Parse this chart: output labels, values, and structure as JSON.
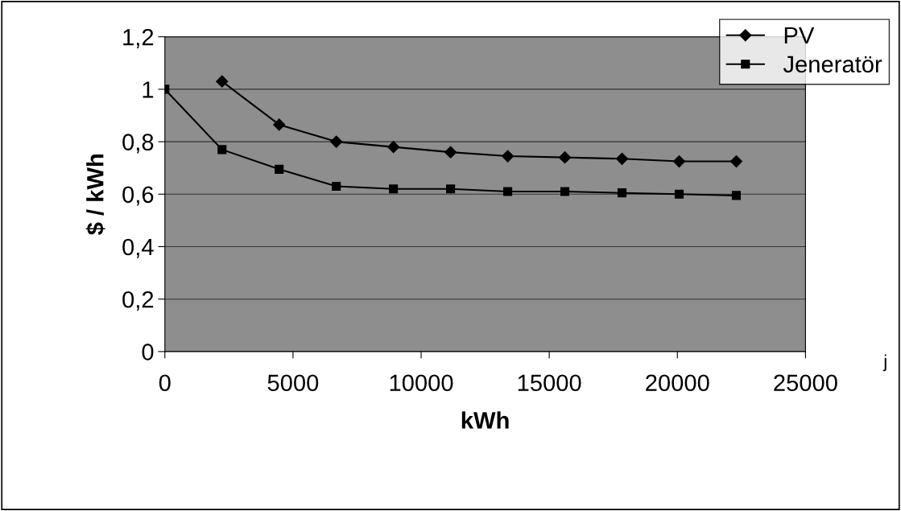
{
  "chart_data": {
    "type": "line",
    "xlabel": "kWh",
    "ylabel": "$ / kWh",
    "series": [
      {
        "name": "PV",
        "color": "#000000",
        "marker": "diamond",
        "x": [
          2230,
          4460,
          6690,
          8920,
          11150,
          13380,
          15610,
          17840,
          20070,
          22300
        ],
        "values": [
          1.03,
          0.865,
          0.8,
          0.78,
          0.76,
          0.745,
          0.74,
          0.735,
          0.725,
          0.725
        ]
      },
      {
        "name": "Jeneratör",
        "color": "#000000",
        "marker": "square",
        "x": [
          0,
          2230,
          4460,
          6690,
          8920,
          11150,
          13380,
          15610,
          17840,
          20070,
          22300
        ],
        "values": [
          1.0,
          0.77,
          0.695,
          0.63,
          0.62,
          0.62,
          0.61,
          0.61,
          0.605,
          0.6,
          0.595
        ]
      }
    ],
    "xlim": [
      0,
      25000
    ],
    "xticks": [
      0,
      5000,
      10000,
      15000,
      20000,
      25000
    ],
    "ylim": [
      0,
      1.2
    ],
    "yticks": [
      {
        "value": 0,
        "label": "0"
      },
      {
        "value": 0.2,
        "label": "0,2"
      },
      {
        "value": 0.4,
        "label": "0,4"
      },
      {
        "value": 0.6,
        "label": "0,6"
      },
      {
        "value": 0.8,
        "label": "0,8"
      },
      {
        "value": 1,
        "label": "1"
      },
      {
        "value": 1.2,
        "label": "1,2"
      }
    ],
    "grid": "y",
    "legend": "top right",
    "line_style": "solid",
    "annotations": [
      "j"
    ]
  }
}
